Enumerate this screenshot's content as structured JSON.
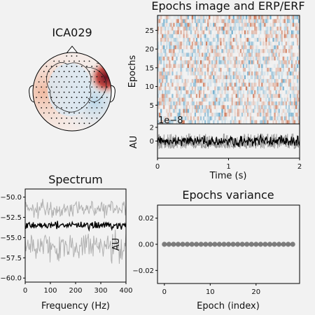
{
  "component": "ICA029",
  "chart_data": [
    {
      "type": "heatmap",
      "title": "Epochs image and ERP/ERF",
      "ylabel": "Epochs",
      "ylim": [
        0,
        29
      ],
      "yticks": [
        "5",
        "10",
        "15",
        "20",
        "25"
      ],
      "xlim": [
        0,
        2
      ],
      "colormap": "RdBu_r",
      "colors": {
        "positive": "#c9643e",
        "negative": "#5ba3c9",
        "zero": "#f4f4f4"
      }
    },
    {
      "type": "line",
      "xlabel": "Time (s)",
      "ylabel": "AU",
      "scale_label": "1e−8",
      "xlim": [
        0,
        2
      ],
      "xticks": [
        "0",
        "1",
        "2"
      ],
      "ylim": [
        -2.5,
        2.5
      ],
      "yticks": [
        "2",
        "0"
      ],
      "series": [
        {
          "kind": "mean",
          "color": "#000000"
        },
        {
          "kind": "spread",
          "color": "#9a9a9a"
        }
      ]
    },
    {
      "type": "line",
      "title": "Spectrum",
      "xlabel": "Frequency (Hz)",
      "xlim": [
        0,
        400
      ],
      "xticks": [
        "0",
        "100",
        "200",
        "300",
        "400"
      ],
      "ylim": [
        -60.5,
        -49
      ],
      "yticks": [
        "−50.0",
        "−52.5",
        "−55.0",
        "−57.5",
        "−60.0"
      ],
      "series": [
        {
          "kind": "mean",
          "level": -53.5,
          "color": "#000000"
        },
        {
          "kind": "upper",
          "level": -51.5,
          "color": "#b0b0b0"
        },
        {
          "kind": "lower",
          "level": -56.0,
          "color": "#b0b0b0"
        }
      ]
    },
    {
      "type": "scatter",
      "title": "Epochs variance",
      "xlabel": "Epoch (index)",
      "ylabel": "AU",
      "xlim": [
        -1.5,
        29.5
      ],
      "xticks": [
        "0",
        "10",
        "20"
      ],
      "ylim": [
        -0.03,
        0.03
      ],
      "yticks": [
        "0.02",
        "0.00",
        "−0.02"
      ],
      "x": [
        0,
        1,
        2,
        3,
        4,
        5,
        6,
        7,
        8,
        9,
        10,
        11,
        12,
        13,
        14,
        15,
        16,
        17,
        18,
        19,
        20,
        21,
        22,
        23,
        24,
        25,
        26,
        27,
        28
      ],
      "y": [
        0,
        0,
        0,
        0,
        0,
        0,
        0,
        0,
        0,
        0,
        0,
        0,
        0,
        0,
        0,
        0,
        0,
        0,
        0,
        0,
        0,
        0,
        0,
        0,
        0,
        0,
        0,
        0,
        0
      ],
      "color": "#555555"
    }
  ]
}
